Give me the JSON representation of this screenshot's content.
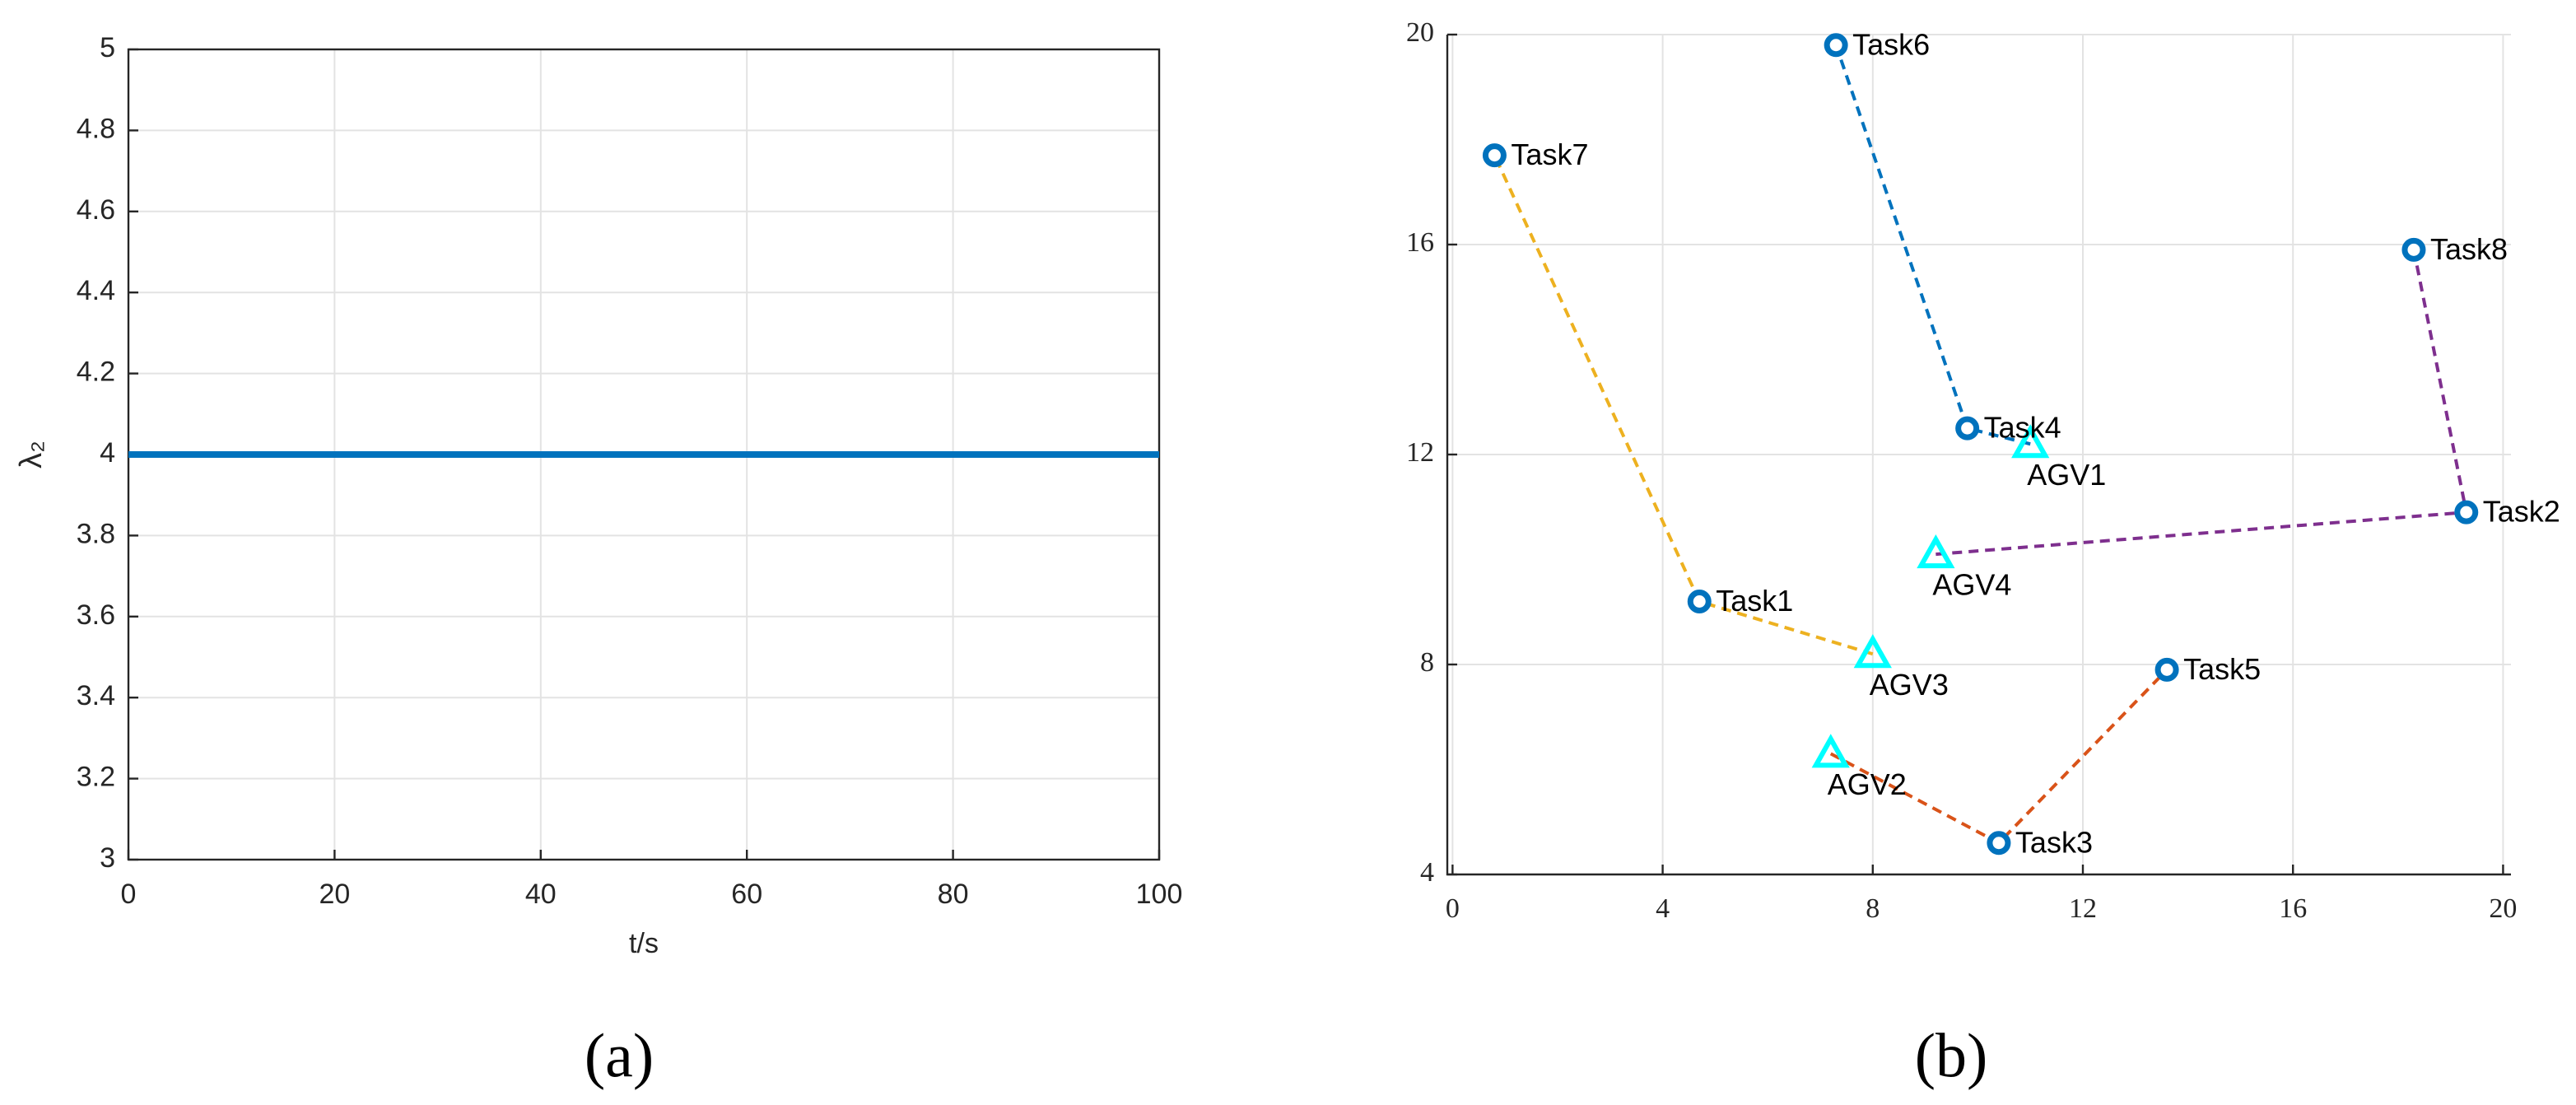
{
  "chart_data": [
    {
      "type": "line",
      "caption": "(a)",
      "xlabel": "t/s",
      "ylabel": "λ₂",
      "x": [
        0,
        100
      ],
      "values": [
        4,
        4
      ],
      "color": "#0072BD",
      "xlim": [
        0,
        100
      ],
      "ylim": [
        3,
        5
      ],
      "xticks": [
        0,
        20,
        40,
        60,
        80,
        100
      ],
      "yticks": [
        3,
        3.2,
        3.4,
        3.6,
        3.8,
        4,
        4.2,
        4.4,
        4.6,
        4.8,
        5
      ],
      "grid": true
    },
    {
      "type": "scatter",
      "caption": "(b)",
      "xlim": [
        -0.1,
        20.15
      ],
      "ylim": [
        4,
        20
      ],
      "xticks": [
        0,
        4,
        8,
        12,
        16,
        20
      ],
      "yticks": [
        4,
        8,
        12,
        16,
        20
      ],
      "grid": true,
      "task_color": "#0072BD",
      "agv_color": "#00FFFF",
      "series": [
        {
          "color": "#0072BD",
          "point_labels": [
            "AGV1",
            "Task4",
            "Task6"
          ],
          "markers": [
            "triangle",
            "circle",
            "circle"
          ],
          "x": [
            11.0,
            9.8,
            7.3
          ],
          "values": [
            12.2,
            12.5,
            19.8
          ]
        },
        {
          "color": "#D95319",
          "point_labels": [
            "AGV2",
            "Task3",
            "Task5"
          ],
          "markers": [
            "triangle",
            "circle",
            "circle"
          ],
          "x": [
            7.2,
            10.4,
            13.6
          ],
          "values": [
            6.3,
            4.6,
            7.9
          ]
        },
        {
          "color": "#EDB120",
          "point_labels": [
            "AGV3",
            "Task1",
            "Task7"
          ],
          "markers": [
            "triangle",
            "circle",
            "circle"
          ],
          "x": [
            8.0,
            4.7,
            0.8
          ],
          "values": [
            8.2,
            9.2,
            17.7
          ]
        },
        {
          "color": "#7E2F8E",
          "point_labels": [
            "AGV4",
            "Task2",
            "Task8"
          ],
          "markers": [
            "triangle",
            "circle",
            "circle"
          ],
          "x": [
            9.2,
            19.3,
            18.3
          ],
          "values": [
            10.1,
            10.9,
            15.9
          ]
        }
      ]
    }
  ]
}
